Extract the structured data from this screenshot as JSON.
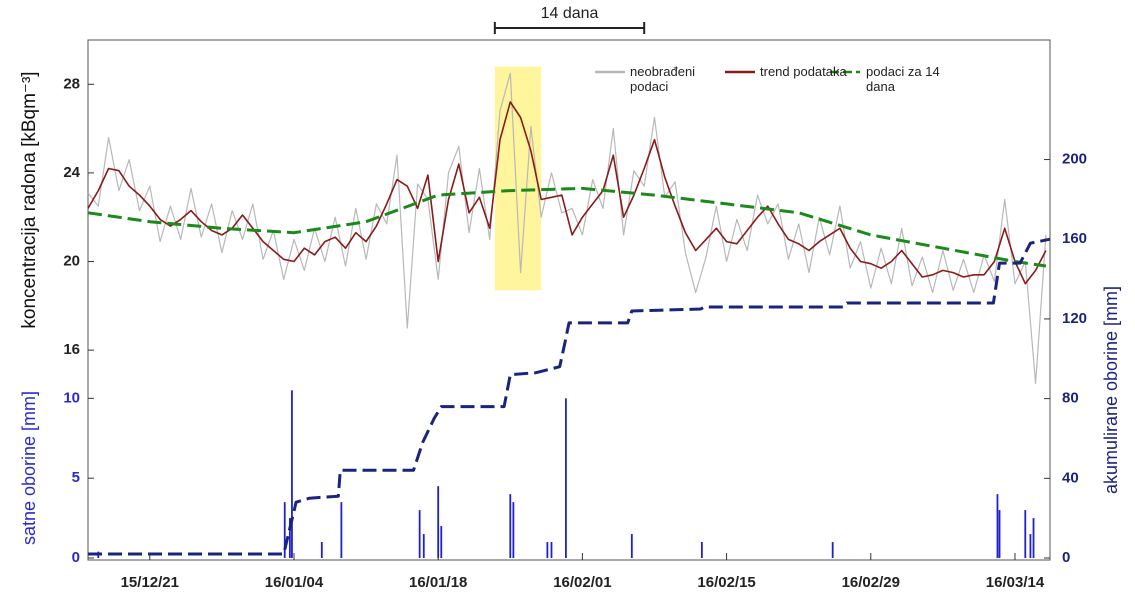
{
  "chart_data": [
    {
      "type": "line",
      "ylabel": "koncentracija radona [kBqm⁻³]",
      "y2label": "akumulirane oborine [mm]",
      "xlim": [
        -6,
        87.4
      ],
      "xticks": [
        {
          "value": 0,
          "label": "15/12/21"
        },
        {
          "value": 14,
          "label": "16/01/04"
        },
        {
          "value": 28,
          "label": "16/01/18"
        },
        {
          "value": 42,
          "label": "16/02/01"
        },
        {
          "value": 56,
          "label": "16/02/15"
        },
        {
          "value": 70,
          "label": "16/02/29"
        },
        {
          "value": 84,
          "label": "16/03/14"
        }
      ],
      "ylim": [
        15.6,
        30
      ],
      "yticks": [
        16,
        20,
        24,
        28
      ],
      "y2lim": [
        0,
        260
      ],
      "y2ticks": [
        0,
        40,
        80,
        120,
        160,
        200
      ],
      "annotations": [
        {
          "text": "14 dana",
          "x": [
            33.5,
            48
          ]
        }
      ],
      "highlight": {
        "x": [
          33.5,
          38
        ],
        "y": [
          18.7,
          28.8
        ],
        "color": "#fff59d"
      },
      "x": [
        -6,
        -5,
        -4,
        -3,
        -2,
        -1,
        0,
        1,
        2,
        3,
        4,
        5,
        6,
        7,
        8,
        9,
        10,
        11,
        12,
        13,
        14,
        15,
        16,
        17,
        18,
        19,
        20,
        21,
        22,
        23,
        24,
        25,
        26,
        27,
        28,
        29,
        30,
        31,
        32,
        33,
        34,
        35,
        36,
        37,
        38,
        39,
        40,
        41,
        42,
        43,
        44,
        45,
        46,
        47,
        48,
        49,
        50,
        51,
        52,
        53,
        54,
        55,
        56,
        57,
        58,
        59,
        60,
        61,
        62,
        63,
        64,
        65,
        66,
        67,
        68,
        69,
        70,
        71,
        72,
        73,
        74,
        75,
        76,
        77,
        78,
        79,
        80,
        81,
        82,
        83,
        84,
        85,
        86,
        87
      ],
      "series": [
        {
          "name": "neobrađeni podaci",
          "color": "#b8b8b8",
          "values": [
            23.1,
            22.5,
            25.6,
            23.2,
            24.6,
            22.3,
            23.4,
            20.9,
            22.5,
            21.0,
            23.3,
            21.1,
            22.6,
            20.4,
            22.3,
            21.0,
            22.6,
            20.1,
            21.4,
            19.2,
            21.0,
            19.6,
            21.5,
            20.0,
            22.0,
            19.8,
            22.4,
            20.1,
            22.6,
            21.7,
            24.8,
            17.0,
            23.5,
            22.8,
            19.2,
            24.0,
            25.2,
            21.3,
            24.2,
            21.0,
            26.8,
            28.5,
            19.5,
            26.1,
            22.0,
            24.0,
            22.2,
            22.4,
            21.2,
            23.7,
            22.4,
            26.0,
            21.2,
            24.1,
            23.4,
            26.5,
            22.9,
            23.6,
            20.4,
            18.6,
            20.2,
            22.5,
            20.0,
            21.9,
            20.5,
            23.0,
            21.7,
            22.6,
            20.1,
            21.7,
            19.5,
            22.0,
            20.3,
            22.5,
            19.7,
            20.9,
            18.8,
            20.6,
            19.0,
            21.5,
            18.9,
            20.2,
            18.6,
            20.5,
            18.7,
            20.1,
            18.6,
            20.3,
            19.1,
            22.8,
            19.0,
            20.0,
            14.5,
            21.2
          ]
        },
        {
          "name": "trend podataka",
          "color": "#8b1a1a",
          "values": [
            22.4,
            23.2,
            24.2,
            24.1,
            23.4,
            23.0,
            22.5,
            21.9,
            21.6,
            21.9,
            22.3,
            21.8,
            21.4,
            21.2,
            21.5,
            22.1,
            21.5,
            20.9,
            20.5,
            20.1,
            20.0,
            20.6,
            20.3,
            20.9,
            21.1,
            20.6,
            21.3,
            20.9,
            21.6,
            22.6,
            23.7,
            23.4,
            22.4,
            23.9,
            20.0,
            22.8,
            24.4,
            22.2,
            22.9,
            21.5,
            25.5,
            27.2,
            26.5,
            25.0,
            22.8,
            22.9,
            23.0,
            21.2,
            22.0,
            22.6,
            23.2,
            24.8,
            22.0,
            23.0,
            24.2,
            25.5,
            23.8,
            22.5,
            21.3,
            20.5,
            21.0,
            21.5,
            20.9,
            20.8,
            21.4,
            22.0,
            22.5,
            21.7,
            21.0,
            20.8,
            20.5,
            20.9,
            21.2,
            21.5,
            20.6,
            20.0,
            19.9,
            19.7,
            20.0,
            20.5,
            19.9,
            19.3,
            19.4,
            19.6,
            19.5,
            19.3,
            19.4,
            19.4,
            20.0,
            21.5,
            20.0,
            19.0,
            19.6,
            20.5
          ]
        },
        {
          "name": "podaci za 14 dana",
          "color": "#1a8a1a",
          "dashed": true,
          "x": [
            -6,
            0,
            7,
            14,
            21,
            28,
            35,
            42,
            49,
            56,
            63,
            70,
            77,
            84,
            87
          ],
          "values": [
            22.2,
            21.8,
            21.5,
            21.3,
            21.8,
            23.0,
            23.2,
            23.3,
            23.0,
            22.6,
            22.2,
            21.2,
            20.6,
            20.0,
            19.8
          ]
        },
        {
          "color": "#1a237e",
          "dashed": true,
          "axis": "y2",
          "x": [
            -6,
            13.0,
            14.2,
            15.5,
            18.3,
            18.5,
            25.6,
            26.5,
            27.6,
            28.3,
            34.4,
            35.0,
            37.5,
            39.8,
            40.3,
            40.7,
            46.4,
            46.8,
            53.5,
            53.8,
            67.4,
            67.7,
            81.9,
            82.5,
            84.5,
            85.5,
            87.4
          ],
          "values": [
            2,
            2,
            28,
            30,
            31,
            44,
            44,
            58,
            70,
            76,
            76,
            92,
            93,
            96,
            108,
            118,
            118,
            124,
            125,
            126,
            126,
            128,
            128,
            148,
            148,
            158,
            160
          ]
        }
      ]
    },
    {
      "type": "bar",
      "ylabel": "satne oborine [mm]",
      "xlim": [
        -6,
        87.4
      ],
      "ylim": [
        0,
        12.4
      ],
      "yticks": [
        0,
        5,
        10
      ],
      "color": "#2020d0",
      "x": [
        -5,
        13.1,
        13.6,
        13.8,
        16.7,
        18.6,
        26.2,
        26.6,
        28.0,
        28.3,
        35.0,
        35.3,
        38.6,
        39.0,
        40.4,
        46.8,
        53.6,
        66.3,
        82.3,
        82.5,
        85.0,
        85.5,
        85.8
      ],
      "values": [
        0.4,
        3.5,
        2.5,
        10.5,
        1.0,
        3.5,
        3.0,
        1.5,
        4.5,
        2.0,
        4.0,
        3.5,
        1.0,
        1.0,
        10.0,
        1.5,
        1.0,
        1.0,
        4.0,
        3.0,
        3.0,
        1.5,
        2.5
      ]
    }
  ]
}
